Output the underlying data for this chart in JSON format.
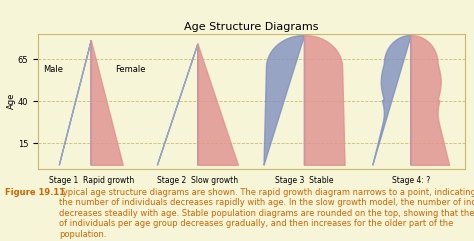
{
  "title": "Age Structure Diagrams",
  "background_color": "#f7f5d8",
  "plot_bg_color": "#f7f5d8",
  "border_color": "#c8b86a",
  "yticks": [
    15,
    40,
    65
  ],
  "ylabel": "Age",
  "grid_color": "#c8b86a",
  "male_color": "#8090c0",
  "female_color": "#e09090",
  "stages": [
    "Stage 1  Rapid growth",
    "Stage 2  Slow growth",
    "Stage 3  Stable",
    "Stage 4: ?"
  ],
  "caption_label": "Figure 19.11",
  "caption_text": "Typical age structure diagrams are shown. The rapid growth diagram narrows to a point, indicating that the number of individuals decreases rapidly with age. In the slow growth model, the number of individuals decreases steadily with age. Stable population diagrams are rounded on the top, showing that the number of individuals per age group decreases gradually, and then increases for the older part of the population.",
  "caption_color": "#cc6600",
  "legend_male": "Male",
  "legend_female": "Female",
  "title_fontsize": 8,
  "label_fontsize": 6,
  "tick_fontsize": 6,
  "caption_fontsize": 6,
  "stage_fontsize": 5.5
}
